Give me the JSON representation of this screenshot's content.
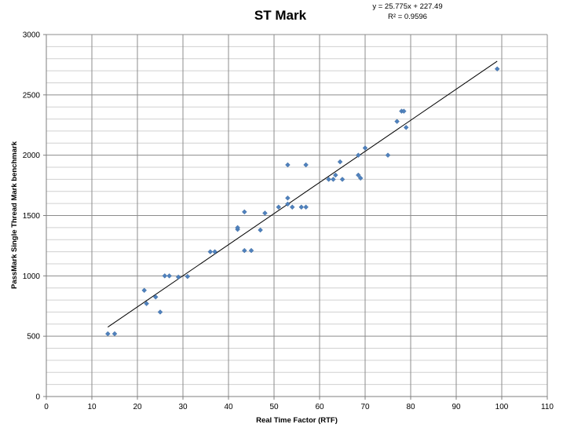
{
  "chart_data": {
    "type": "scatter",
    "title": "ST Mark",
    "xlabel": "Real Time Factor (RTF)",
    "ylabel": "PassMark Single Thread Mark benchmark",
    "xlim": [
      0,
      110
    ],
    "ylim": [
      0,
      3000
    ],
    "x_major_ticks": [
      0,
      10,
      20,
      30,
      40,
      50,
      60,
      70,
      80,
      90,
      100,
      110
    ],
    "y_major_ticks": [
      0,
      500,
      1000,
      1500,
      2000,
      2500,
      3000
    ],
    "y_minor_step": 100,
    "grid": true,
    "legend": "none",
    "series_color": "#4f81bd",
    "trendline": {
      "type": "linear",
      "equation": "y = 25.775x + 227.49",
      "r_squared": "R² = 0.9596",
      "slope": 25.775,
      "intercept": 227.49,
      "x_range": [
        13.5,
        99
      ]
    },
    "points": [
      {
        "x": 13.5,
        "y": 520
      },
      {
        "x": 15,
        "y": 520
      },
      {
        "x": 21.5,
        "y": 880
      },
      {
        "x": 22,
        "y": 770
      },
      {
        "x": 24,
        "y": 825
      },
      {
        "x": 25,
        "y": 700
      },
      {
        "x": 26,
        "y": 1000
      },
      {
        "x": 27,
        "y": 1000
      },
      {
        "x": 29,
        "y": 990
      },
      {
        "x": 31,
        "y": 995
      },
      {
        "x": 36,
        "y": 1200
      },
      {
        "x": 37,
        "y": 1200
      },
      {
        "x": 42,
        "y": 1385
      },
      {
        "x": 42,
        "y": 1400
      },
      {
        "x": 43.5,
        "y": 1530
      },
      {
        "x": 43.5,
        "y": 1210
      },
      {
        "x": 45,
        "y": 1210
      },
      {
        "x": 47,
        "y": 1380
      },
      {
        "x": 48,
        "y": 1520
      },
      {
        "x": 51,
        "y": 1570
      },
      {
        "x": 53,
        "y": 1920
      },
      {
        "x": 53,
        "y": 1645
      },
      {
        "x": 53,
        "y": 1595
      },
      {
        "x": 54,
        "y": 1570
      },
      {
        "x": 56,
        "y": 1570
      },
      {
        "x": 57,
        "y": 1920
      },
      {
        "x": 57,
        "y": 1570
      },
      {
        "x": 62,
        "y": 1800
      },
      {
        "x": 63,
        "y": 1800
      },
      {
        "x": 63.5,
        "y": 1835
      },
      {
        "x": 64.5,
        "y": 1945
      },
      {
        "x": 65,
        "y": 1800
      },
      {
        "x": 68.5,
        "y": 2000
      },
      {
        "x": 68.5,
        "y": 1835
      },
      {
        "x": 69,
        "y": 1810
      },
      {
        "x": 70,
        "y": 2060
      },
      {
        "x": 75,
        "y": 2000
      },
      {
        "x": 77,
        "y": 2280
      },
      {
        "x": 78,
        "y": 2365
      },
      {
        "x": 78.5,
        "y": 2365
      },
      {
        "x": 79,
        "y": 2230
      },
      {
        "x": 99,
        "y": 2715
      }
    ]
  }
}
